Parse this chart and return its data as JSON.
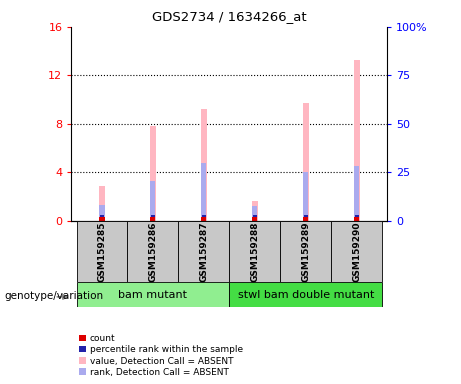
{
  "title": "GDS2734 / 1634266_at",
  "samples": [
    "GSM159285",
    "GSM159286",
    "GSM159287",
    "GSM159288",
    "GSM159289",
    "GSM159290"
  ],
  "pink_bar_heights": [
    2.9,
    7.8,
    9.2,
    1.6,
    9.7,
    13.3
  ],
  "blue_bar_heights": [
    1.3,
    3.3,
    4.8,
    1.2,
    4.0,
    4.5
  ],
  "ylim_left": [
    0,
    16
  ],
  "ylim_right": [
    0,
    100
  ],
  "yticks_left": [
    0,
    4,
    8,
    12,
    16
  ],
  "ytick_labels_left": [
    "0",
    "4",
    "8",
    "12",
    "16"
  ],
  "yticks_right": [
    0,
    25,
    50,
    75,
    100
  ],
  "ytick_labels_right": [
    "0",
    "25",
    "50",
    "75",
    "100%"
  ],
  "group1_label": "bam mutant",
  "group2_label": "stwl bam double mutant",
  "group_label_prefix": "genotype/variation",
  "group1_color": "#90EE90",
  "group2_color": "#44DD44",
  "sample_box_color": "#C8C8C8",
  "pink_color": "#FFB6C1",
  "blue_color": "#AAAAEE",
  "red_color": "#DD0000",
  "dark_blue_color": "#2222AA",
  "legend_items": [
    {
      "color": "#DD0000",
      "label": "count"
    },
    {
      "color": "#2222AA",
      "label": "percentile rank within the sample"
    },
    {
      "color": "#FFB6C1",
      "label": "value, Detection Call = ABSENT"
    },
    {
      "color": "#AAAAEE",
      "label": "rank, Detection Call = ABSENT"
    }
  ]
}
